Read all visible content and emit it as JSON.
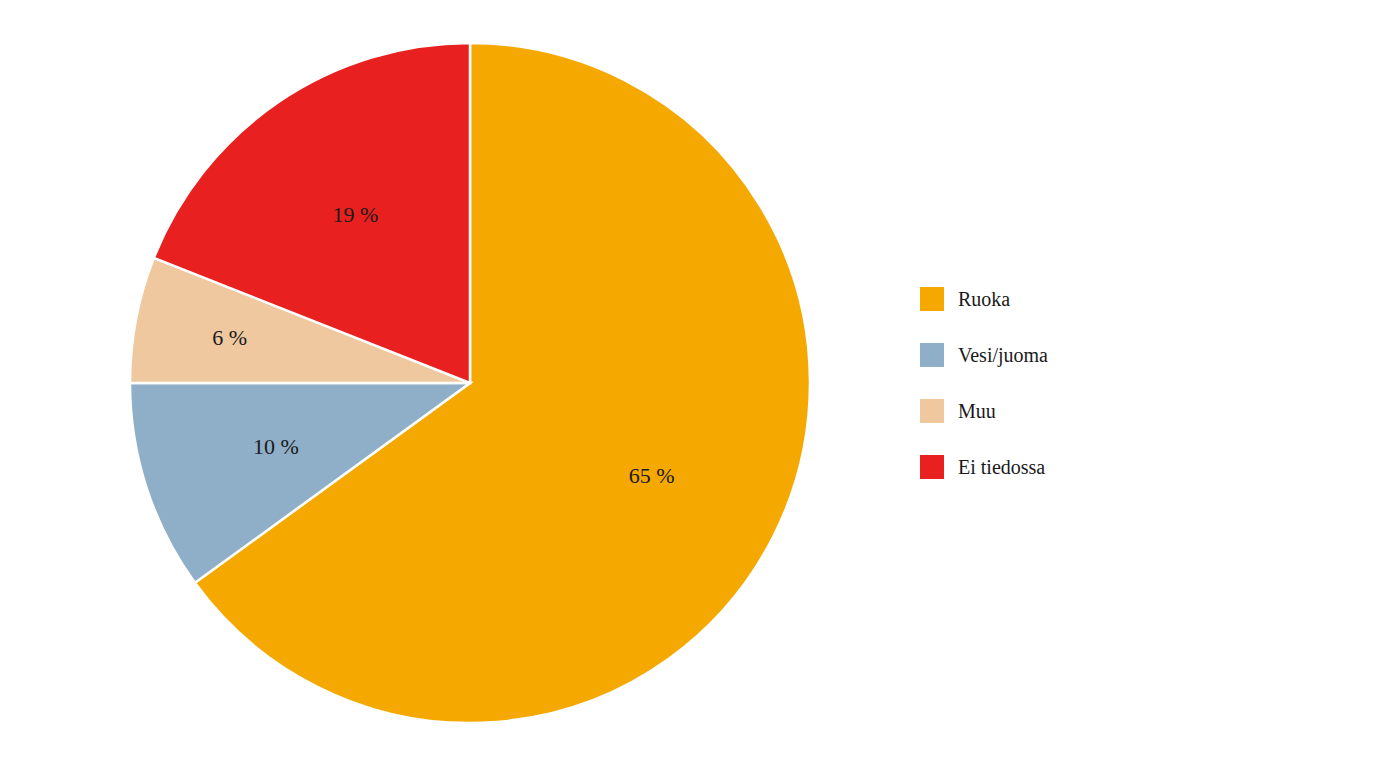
{
  "chart_data": {
    "type": "pie",
    "categories": [
      "Ruoka",
      "Vesi/juoma",
      "Muu",
      "Ei tiedossa"
    ],
    "values": [
      65,
      10,
      6,
      19
    ],
    "value_labels": [
      "65 %",
      "10 %",
      "6 %",
      "19 %"
    ],
    "colors": [
      "#F5A800",
      "#8FAEC8",
      "#F0C8A0",
      "#E82020"
    ],
    "legend": "right",
    "data_labels": true
  }
}
